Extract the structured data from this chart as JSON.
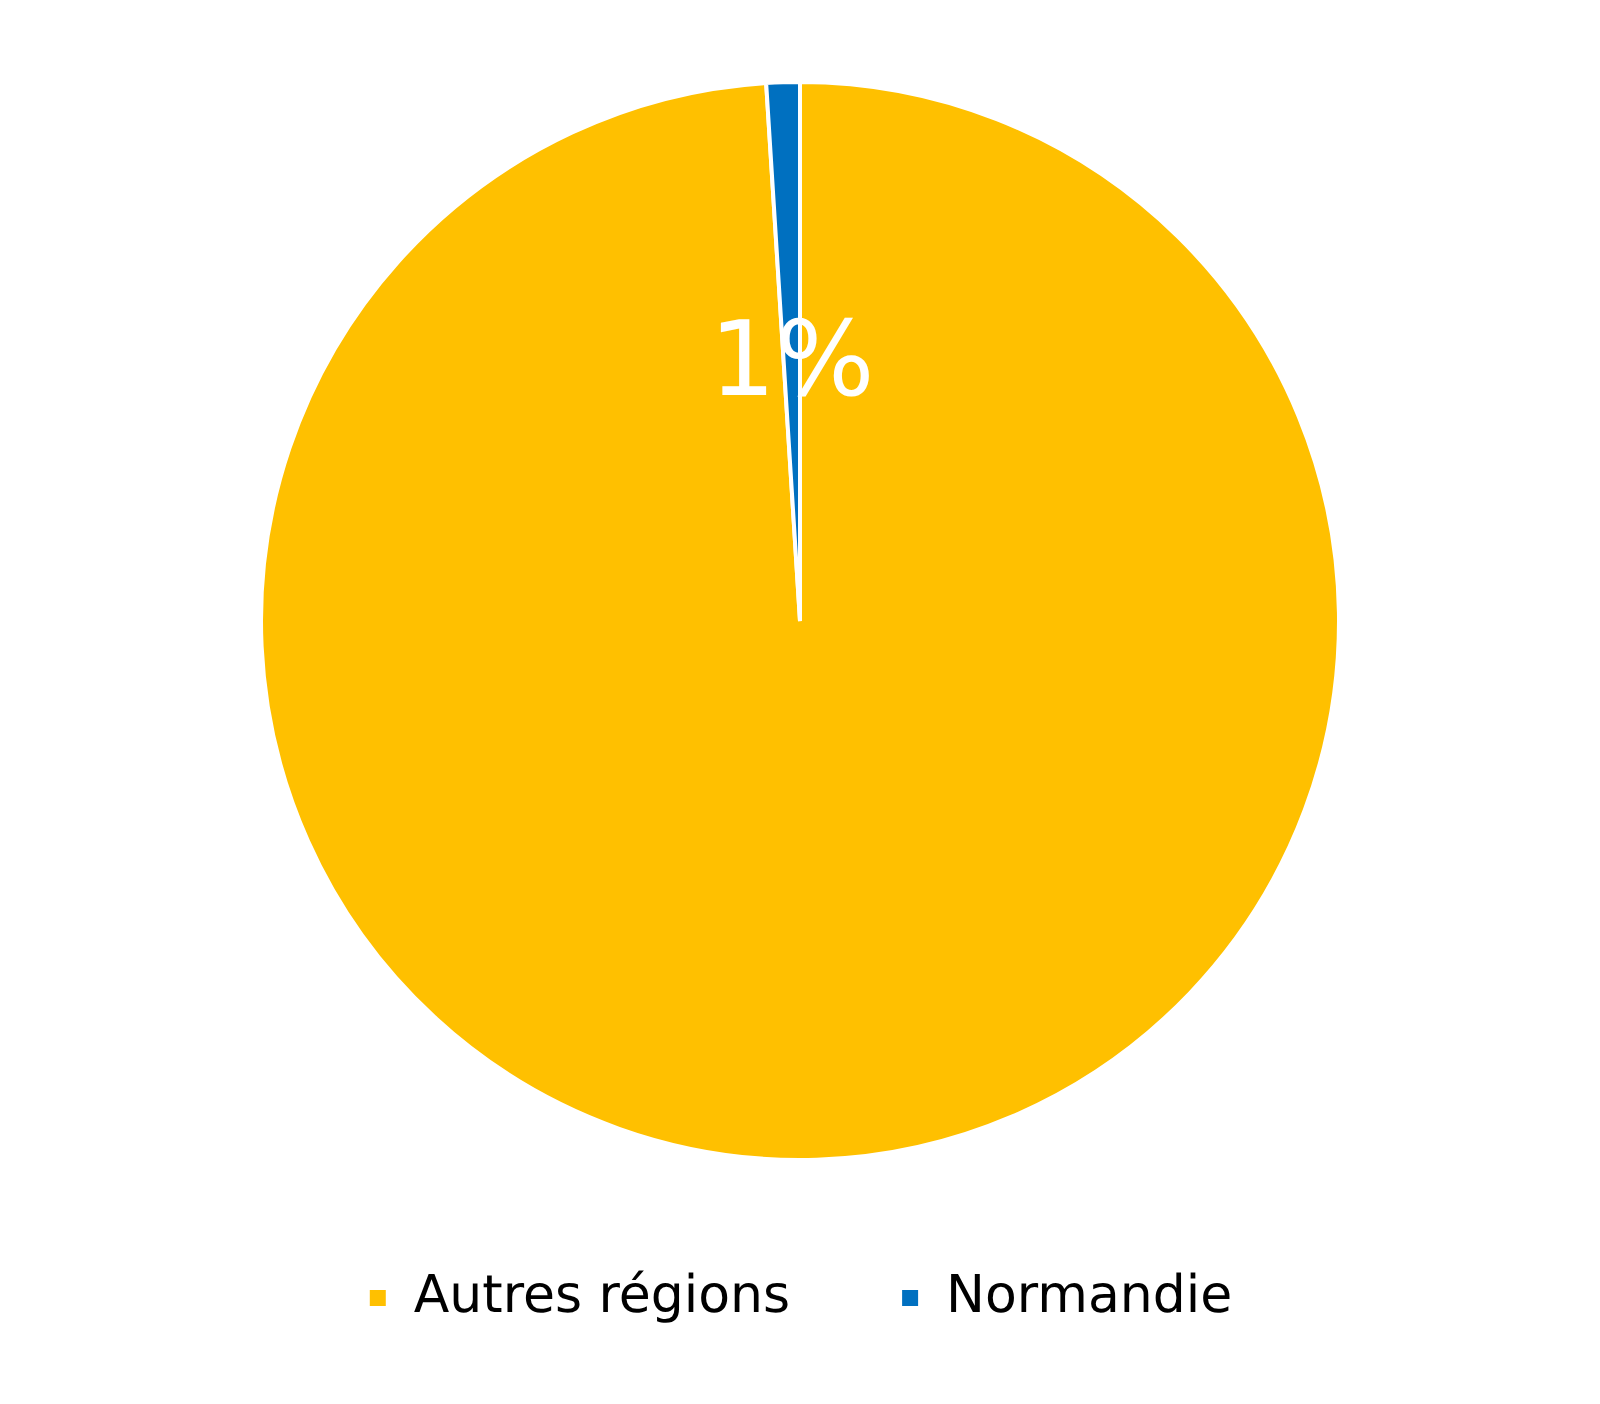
{
  "chart_data": {
    "type": "pie",
    "categories": [
      "Autres régions",
      "Normandie"
    ],
    "values": [
      99,
      1
    ],
    "colors": [
      "#ffc000",
      "#0070c0"
    ],
    "value_labels": [
      null,
      "1%"
    ],
    "legend": "bottom"
  }
}
